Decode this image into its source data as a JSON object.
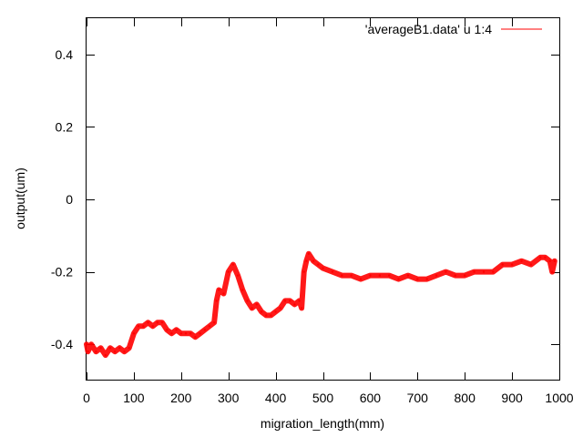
{
  "chart_data": {
    "type": "line",
    "title": "",
    "xlabel": "migration_length(mm)",
    "ylabel": "output(um)",
    "xlim": [
      0,
      1000
    ],
    "ylim": [
      -0.5,
      0.5
    ],
    "x_ticks": [
      0,
      100,
      200,
      300,
      400,
      500,
      600,
      700,
      800,
      900,
      1000
    ],
    "y_ticks": [
      -0.4,
      -0.2,
      0,
      0.2,
      0.4
    ],
    "x_tick_labels": [
      "0",
      "100",
      "200",
      "300",
      "400",
      "500",
      "600",
      "700",
      "800",
      "900",
      "1000"
    ],
    "y_tick_labels": [
      "-0.4",
      "-0.2",
      "0",
      "0.2",
      "0.4"
    ],
    "grid": false,
    "legend_position": "top-right",
    "series": [
      {
        "name": "'averageB1.data' u 1:4",
        "color": "#ff0000",
        "x": [
          0,
          3,
          10,
          20,
          30,
          40,
          50,
          60,
          70,
          80,
          90,
          100,
          110,
          120,
          130,
          140,
          150,
          160,
          170,
          180,
          190,
          200,
          210,
          220,
          230,
          240,
          250,
          260,
          270,
          275,
          280,
          290,
          300,
          310,
          320,
          330,
          340,
          350,
          360,
          370,
          380,
          390,
          400,
          410,
          420,
          430,
          440,
          450,
          455,
          460,
          465,
          470,
          480,
          490,
          500,
          520,
          540,
          560,
          580,
          600,
          620,
          640,
          660,
          680,
          700,
          720,
          740,
          760,
          780,
          800,
          820,
          840,
          860,
          880,
          900,
          920,
          940,
          960,
          970,
          980,
          985,
          990
        ],
        "y": [
          -0.4,
          -0.42,
          -0.4,
          -0.42,
          -0.41,
          -0.43,
          -0.41,
          -0.42,
          -0.41,
          -0.42,
          -0.41,
          -0.37,
          -0.35,
          -0.35,
          -0.34,
          -0.35,
          -0.34,
          -0.34,
          -0.36,
          -0.37,
          -0.36,
          -0.37,
          -0.37,
          -0.37,
          -0.38,
          -0.37,
          -0.36,
          -0.35,
          -0.34,
          -0.28,
          -0.25,
          -0.26,
          -0.2,
          -0.18,
          -0.21,
          -0.25,
          -0.28,
          -0.3,
          -0.29,
          -0.31,
          -0.32,
          -0.32,
          -0.31,
          -0.3,
          -0.28,
          -0.28,
          -0.29,
          -0.28,
          -0.3,
          -0.2,
          -0.17,
          -0.15,
          -0.17,
          -0.18,
          -0.19,
          -0.2,
          -0.21,
          -0.21,
          -0.22,
          -0.21,
          -0.21,
          -0.21,
          -0.22,
          -0.21,
          -0.22,
          -0.22,
          -0.21,
          -0.2,
          -0.21,
          -0.21,
          -0.2,
          -0.2,
          -0.2,
          -0.18,
          -0.18,
          -0.17,
          -0.18,
          -0.16,
          -0.16,
          -0.17,
          -0.2,
          -0.17
        ]
      }
    ]
  }
}
